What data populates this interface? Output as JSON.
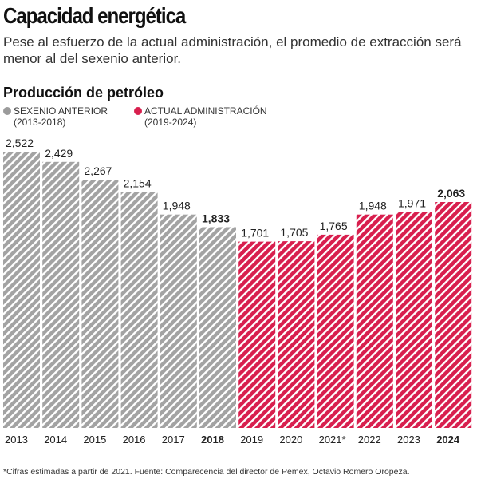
{
  "header": {
    "title": "Capacidad energética",
    "subtitle": "Pese al esfuerzo de la actual administración, el promedio de extracción será menor al del sexenio anterior."
  },
  "section_title": "Producción de petróleo",
  "legend": {
    "previous": {
      "line1": "SEXENIO ANTERIOR",
      "line2": "(2013-2018)",
      "color": "#9b9b9b"
    },
    "current": {
      "line1": "ACTUAL ADMINISTRACIÓN",
      "line2": "(2019-2024)",
      "color": "#d81f4e"
    }
  },
  "chart_data": {
    "type": "bar",
    "categories": [
      "2013",
      "2014",
      "2015",
      "2016",
      "2017",
      "2018",
      "2019",
      "2020",
      "2021*",
      "2022",
      "2023",
      "2024"
    ],
    "series": [
      {
        "name": "SEXENIO ANTERIOR (2013-2018)",
        "values": [
          2522,
          2429,
          2267,
          2154,
          1948,
          1833,
          null,
          null,
          null,
          null,
          null,
          null
        ],
        "color": "#9b9b9b"
      },
      {
        "name": "ACTUAL ADMINISTRACIÓN (2019-2024)",
        "values": [
          null,
          null,
          null,
          null,
          null,
          null,
          1701,
          1705,
          1765,
          1948,
          1971,
          2063
        ],
        "color": "#d81f4e"
      }
    ],
    "value_labels": [
      "2,522",
      "2,429",
      "2,267",
      "2,154",
      "1,948",
      "1,833",
      "1,701",
      "1,705",
      "1,765",
      "1,948",
      "1,971",
      "2,063"
    ],
    "bold_labels": [
      "2018",
      "2024"
    ],
    "title": "Producción de petróleo",
    "xlabel": "",
    "ylabel": "",
    "ylim": [
      0,
      2522
    ],
    "grid": false,
    "legend_position": "top-left"
  },
  "footnote": "*Cifras estimadas a partir de 2021. Fuente: Comparecencia del director de Pemex, Octavio Romero Oropeza."
}
